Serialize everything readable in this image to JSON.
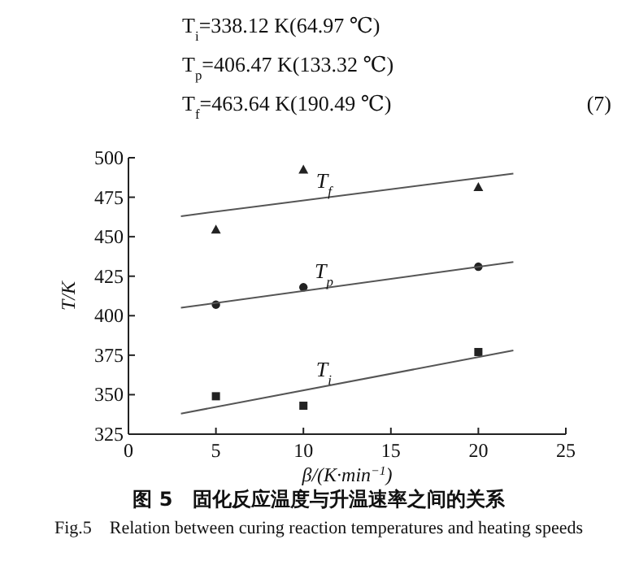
{
  "chart_data": {
    "type": "scatter",
    "xlabel": "β/(K·min$^{−1}$)",
    "ylabel": "T/K",
    "xlim": [
      0,
      25
    ],
    "xticks": [
      0,
      5,
      10,
      15,
      20,
      25
    ],
    "ylim": [
      325,
      500
    ],
    "yticks": [
      325,
      350,
      375,
      400,
      425,
      450,
      475,
      500
    ],
    "series": [
      {
        "marker": "triangle",
        "color": "#222222",
        "x": [
          5,
          10,
          20
        ],
        "values": [
          454,
          492,
          481
        ]
      },
      {
        "type": "line",
        "name": "T$_{f}$",
        "color": "#555555",
        "x": [
          3,
          22
        ],
        "values": [
          463,
          490
        ]
      },
      {
        "marker": "circle",
        "color": "#222222",
        "x": [
          5,
          10,
          20
        ],
        "values": [
          407,
          418,
          431
        ]
      },
      {
        "type": "line",
        "name": "T$_{p}$",
        "color": "#555555",
        "x": [
          3,
          22
        ],
        "values": [
          405,
          434
        ]
      },
      {
        "marker": "square",
        "color": "#222222",
        "x": [
          5,
          10,
          20
        ],
        "values": [
          349,
          343,
          377
        ]
      },
      {
        "type": "line",
        "name": "T$_{i}$",
        "color": "#555555",
        "x": [
          3,
          22
        ],
        "values": [
          338,
          378
        ]
      }
    ],
    "annotations": [
      "T$_{i}$=338.12 K(64.97 ℃)",
      "T$_{p}$=406.47 K(133.32 ℃)",
      "T$_{f}$=463.64 K(190.49 ℃)",
      "(7)",
      "图 5　固化反应温度与升温速率之间的关系",
      "Fig.5　Relation between curing reaction temperatures and heating speeds"
    ]
  }
}
